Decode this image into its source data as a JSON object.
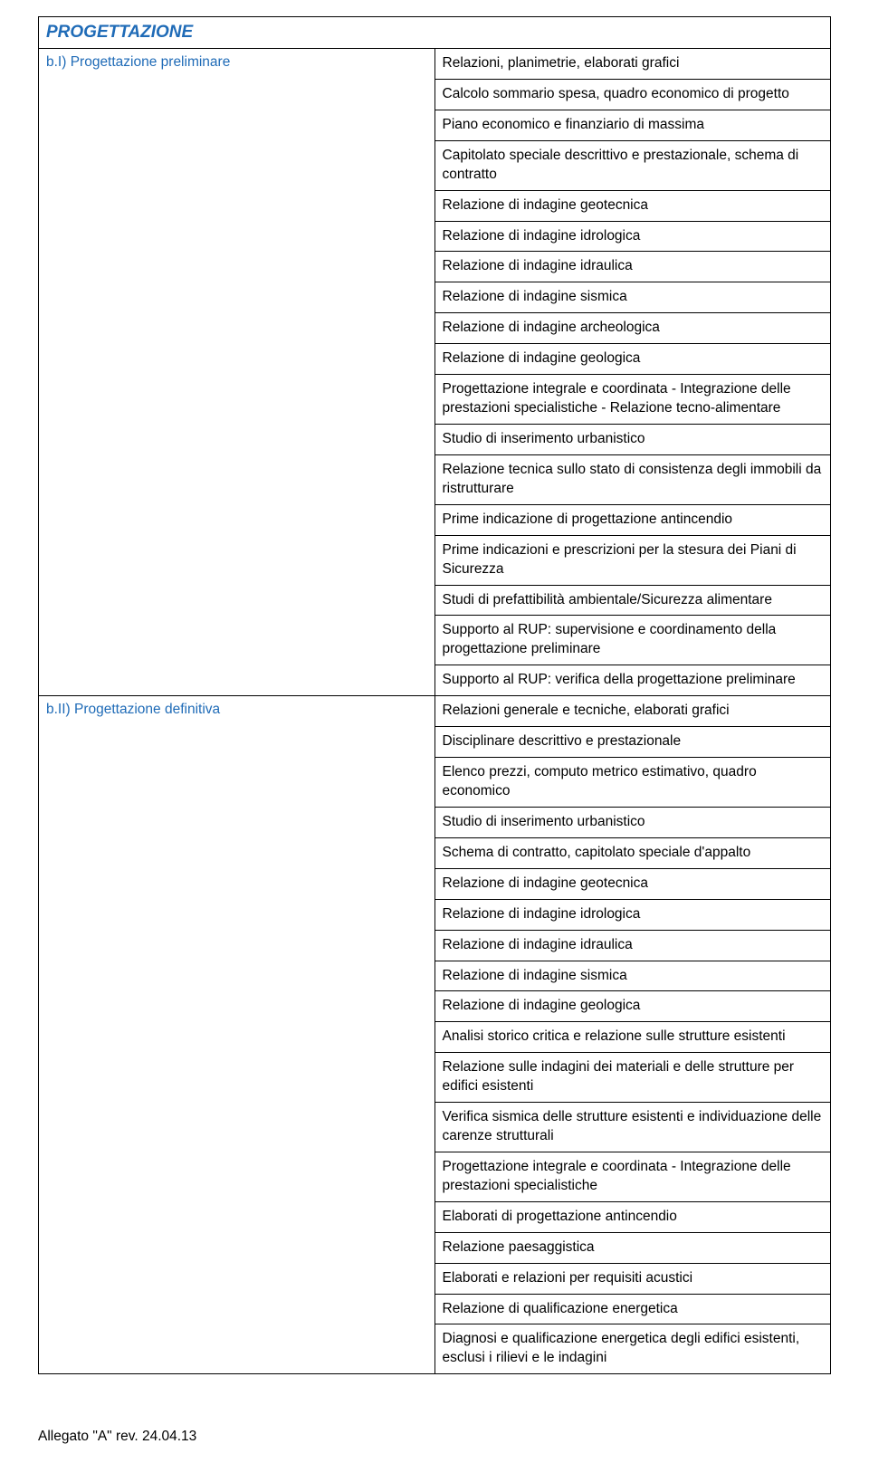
{
  "section_title": "PROGETTAZIONE",
  "rows": [
    {
      "label": "b.I) Progettazione preliminare",
      "items": [
        "Relazioni, planimetrie, elaborati grafici",
        "Calcolo sommario spesa, quadro economico di progetto",
        "Piano economico e finanziario di massima",
        "Capitolato speciale descrittivo e prestazionale, schema di contratto",
        "Relazione di indagine geotecnica",
        "Relazione di indagine idrologica",
        "Relazione di indagine idraulica",
        "Relazione di indagine sismica",
        "Relazione di indagine archeologica",
        "Relazione di indagine geologica",
        "Progettazione integrale e coordinata - Integrazione delle prestazioni specialistiche - Relazione tecno-alimentare",
        "Studio di inserimento urbanistico",
        "Relazione tecnica sullo stato di consistenza degli immobili da ristrutturare",
        "Prime indicazione di progettazione antincendio",
        "Prime indicazioni e prescrizioni per la stesura dei Piani di Sicurezza",
        "Studi di prefattibilità ambientale/Sicurezza alimentare",
        "Supporto al RUP: supervisione e coordinamento della progettazione preliminare",
        "Supporto al RUP: verifica della progettazione preliminare"
      ]
    },
    {
      "label": "b.II) Progettazione definitiva",
      "items": [
        "Relazioni generale e tecniche, elaborati grafici",
        "Disciplinare descrittivo e prestazionale",
        "Elenco prezzi, computo metrico estimativo, quadro economico",
        "Studio di inserimento urbanistico",
        "Schema di contratto, capitolato speciale d'appalto",
        "Relazione di indagine geotecnica",
        "Relazione di indagine idrologica",
        "Relazione di indagine idraulica",
        "Relazione di indagine sismica",
        "Relazione di indagine geologica",
        "Analisi storico critica e relazione sulle strutture esistenti",
        "Relazione sulle indagini dei materiali e delle strutture per edifici esistenti",
        "Verifica sismica delle strutture esistenti e individuazione delle carenze strutturali",
        "Progettazione integrale e coordinata - Integrazione delle prestazioni specialistiche",
        "Elaborati di progettazione antincendio",
        "Relazione paesaggistica",
        "Elaborati e relazioni per requisiti acustici",
        "Relazione di qualificazione energetica",
        "Diagnosi e qualificazione energetica degli edifici esistenti, esclusi i rilievi e le indagini"
      ]
    }
  ],
  "footer": "Allegato \"A\"  rev. 24.04.13"
}
